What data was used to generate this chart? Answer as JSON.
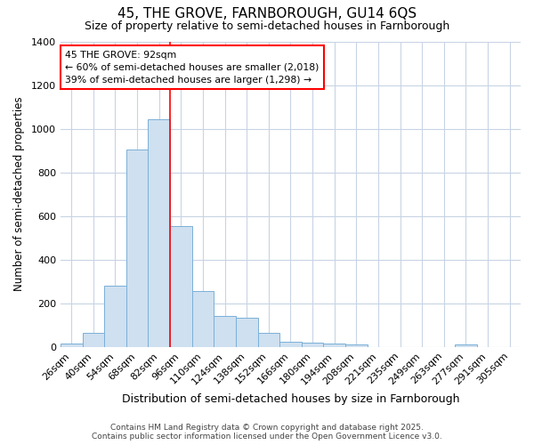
{
  "title1": "45, THE GROVE, FARNBOROUGH, GU14 6QS",
  "title2": "Size of property relative to semi-detached houses in Farnborough",
  "xlabel": "Distribution of semi-detached houses by size in Farnborough",
  "ylabel": "Number of semi-detached properties",
  "categories": [
    "26sqm",
    "40sqm",
    "54sqm",
    "68sqm",
    "82sqm",
    "96sqm",
    "110sqm",
    "124sqm",
    "138sqm",
    "152sqm",
    "166sqm",
    "180sqm",
    "194sqm",
    "208sqm",
    "221sqm",
    "235sqm",
    "249sqm",
    "263sqm",
    "277sqm",
    "291sqm",
    "305sqm"
  ],
  "values": [
    15,
    65,
    280,
    905,
    1045,
    555,
    255,
    140,
    135,
    65,
    25,
    20,
    15,
    10,
    0,
    0,
    0,
    0,
    10,
    0,
    0
  ],
  "bar_color": "#cfe0f0",
  "bar_edge_color": "#7ab0d8",
  "grid_color": "#c8d4e4",
  "background_color": "#ffffff",
  "vline_x": 5.0,
  "annotation_line1": "45 THE GROVE: 92sqm",
  "annotation_line2": "← 60% of semi-detached houses are smaller (2,018)",
  "annotation_line3": "39% of semi-detached houses are larger (1,298) →",
  "footer1": "Contains HM Land Registry data © Crown copyright and database right 2025.",
  "footer2": "Contains public sector information licensed under the Open Government Licence v3.0.",
  "ylim": [
    0,
    1400
  ],
  "yticks": [
    0,
    200,
    400,
    600,
    800,
    1000,
    1200,
    1400
  ]
}
